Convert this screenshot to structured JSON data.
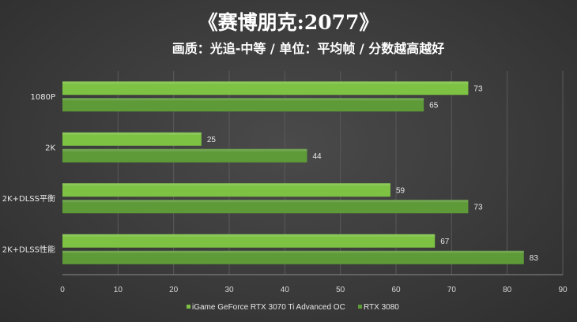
{
  "chart_data": {
    "type": "bar",
    "orientation": "horizontal",
    "title": "《赛博朋克:2077》",
    "subtitle": "画质：光追-中等 / 单位：平均帧 / 分数越高越好",
    "categories": [
      "1080P",
      "2K",
      "2K+DLSS平衡",
      "2K+DLSS性能"
    ],
    "series": [
      {
        "name": "iGame GeForce RTX 3070 Ti Advanced OC",
        "values": [
          73,
          25,
          59,
          67
        ],
        "color": "#7dc242"
      },
      {
        "name": "RTX 3080",
        "values": [
          65,
          44,
          73,
          83
        ],
        "color": "#5e9a38"
      }
    ],
    "xlim": [
      0,
      90
    ],
    "xticks": [
      0,
      10,
      20,
      30,
      40,
      50,
      60,
      70,
      80,
      90
    ],
    "grid": true,
    "legend": "bottom"
  }
}
